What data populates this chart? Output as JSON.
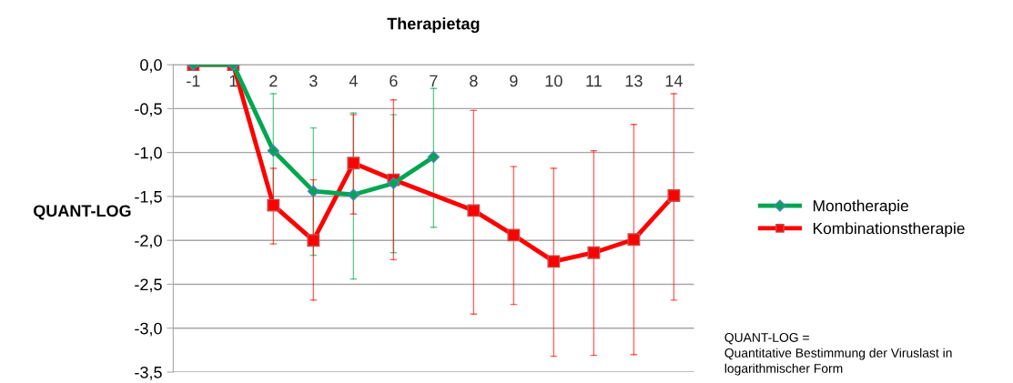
{
  "chart_data": {
    "type": "line",
    "xlabel": "Therapietag",
    "ylabel": "QUANT-LOG",
    "categories": [
      "-1",
      "1",
      "2",
      "3",
      "4",
      "6",
      "7",
      "8",
      "9",
      "10",
      "11",
      "13",
      "14"
    ],
    "series": [
      {
        "name": "Monotherapie",
        "color": "#00a650",
        "marker": "diamond",
        "values": [
          0,
          0,
          -0.98,
          -1.44,
          -1.48,
          -1.35,
          -1.05,
          null,
          null,
          null,
          null,
          null,
          null
        ],
        "errors": [
          null,
          null,
          [
            -1.63,
            -0.33
          ],
          [
            -2.17,
            -0.72
          ],
          [
            -2.44,
            -0.55
          ],
          [
            -2.14,
            -0.57
          ],
          [
            -1.85,
            -0.27
          ],
          null,
          null,
          null,
          null,
          null,
          null
        ]
      },
      {
        "name": "Kombinationstherapie",
        "color": "#ff0000",
        "marker": "square",
        "values": [
          0,
          0,
          -1.6,
          -2.0,
          -1.12,
          -1.31,
          null,
          -1.66,
          -1.94,
          -2.24,
          -2.14,
          -1.99,
          -1.49
        ],
        "errors": [
          null,
          null,
          [
            -2.04,
            -1.18
          ],
          [
            -2.68,
            -1.31
          ],
          [
            -1.7,
            -0.57
          ],
          [
            -2.22,
            -0.4
          ],
          null,
          [
            -2.84,
            -0.52
          ],
          [
            -2.73,
            -1.16
          ],
          [
            -3.32,
            -1.18
          ],
          [
            -3.31,
            -0.98
          ],
          [
            -3.3,
            -0.68
          ],
          [
            -2.68,
            -0.33
          ]
        ]
      }
    ],
    "ylim": [
      -3.5,
      0
    ],
    "yticks": [
      {
        "value": 0,
        "label": "0,0"
      },
      {
        "value": -0.5,
        "label": "-0,5"
      },
      {
        "value": -1,
        "label": "-1,0"
      },
      {
        "value": -1.5,
        "label": "-1,5"
      },
      {
        "value": -2,
        "label": "-2,0"
      },
      {
        "value": -2.5,
        "label": "-2,5"
      },
      {
        "value": -3,
        "label": "-3,0"
      },
      {
        "value": -3.5,
        "label": "-3,5"
      }
    ],
    "grid": "y",
    "legend": "right",
    "annotations": [
      "QUANT-LOG =\nQuantitative Bestimmung der Viruslast in\nlogarithmischer Form"
    ]
  }
}
